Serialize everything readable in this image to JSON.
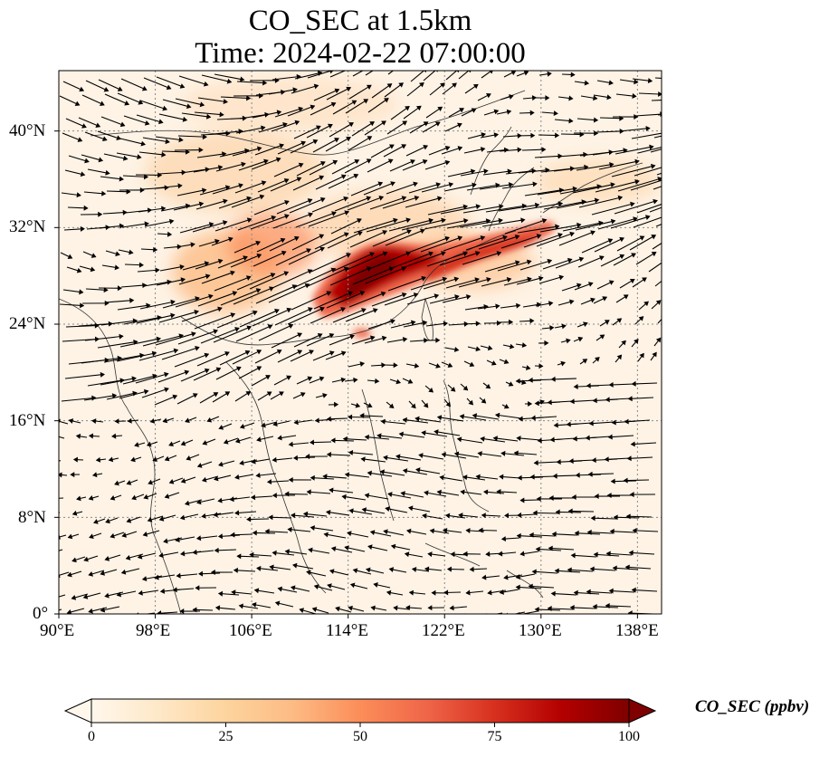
{
  "title": {
    "line1": "CO_SEC at 1.5km",
    "line2": "Time: 2024-02-22 07:00:00"
  },
  "map": {
    "projection": "PlateCarree",
    "lon_range": [
      90,
      140
    ],
    "lat_range": [
      0,
      45
    ],
    "gridlines": "dotted",
    "features": [
      "coastlines",
      "country-borders"
    ],
    "wind_vectors": true,
    "x_ticks": [
      "90°E",
      "98°E",
      "106°E",
      "114°E",
      "122°E",
      "130°E",
      "138°E"
    ],
    "y_ticks": [
      "0°",
      "8°N",
      "16°N",
      "24°N",
      "32°N",
      "40°N"
    ]
  },
  "colorbar": {
    "label": "CO_SEC (ppbv)",
    "ticks": [
      "0",
      "25",
      "50",
      "75",
      "100"
    ],
    "range": [
      0,
      100
    ],
    "colormap": "OrRd",
    "extend": "both",
    "colors": [
      "#fff7ec",
      "#fee8c8",
      "#fdd49e",
      "#fdbb84",
      "#fc8d59",
      "#ef6548",
      "#d7301f",
      "#b30000",
      "#7f0000"
    ]
  }
}
